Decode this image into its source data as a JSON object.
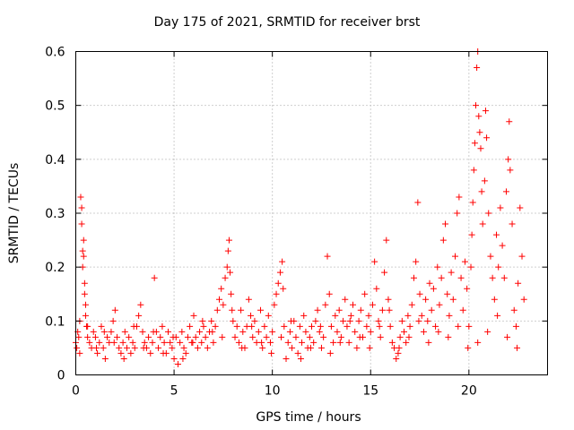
{
  "chart_data": {
    "type": "scatter",
    "title": "Day 175 of 2021, SRMTID for receiver brst",
    "xlabel": "GPS time / hours",
    "ylabel": "SRMTID / TECUs",
    "xlim": [
      0,
      24
    ],
    "ylim": [
      0,
      0.6
    ],
    "xticks": [
      0,
      5,
      10,
      15,
      20
    ],
    "xtick_labels": [
      "0",
      "5",
      "10",
      "15",
      "20"
    ],
    "yticks": [
      0,
      0.1,
      0.2,
      0.3,
      0.4,
      0.5,
      0.6
    ],
    "ytick_labels": [
      "0",
      "0.1",
      "0.2",
      "0.3",
      "0.4",
      "0.5",
      "0.6"
    ],
    "grid": true,
    "marker": "+",
    "series": [
      {
        "name": "SRMTID",
        "color": "#ff0000",
        "points": [
          [
            0.0,
            0.06
          ],
          [
            0.05,
            0.05
          ],
          [
            0.1,
            0.08
          ],
          [
            0.15,
            0.07
          ],
          [
            0.2,
            0.1
          ],
          [
            0.25,
            0.33
          ],
          [
            0.3,
            0.31
          ],
          [
            0.3,
            0.28
          ],
          [
            0.35,
            0.23
          ],
          [
            0.35,
            0.2
          ],
          [
            0.4,
            0.25
          ],
          [
            0.4,
            0.22
          ],
          [
            0.45,
            0.17
          ],
          [
            0.45,
            0.15
          ],
          [
            0.5,
            0.13
          ],
          [
            0.5,
            0.11
          ],
          [
            0.55,
            0.09
          ],
          [
            0.6,
            0.07
          ],
          [
            0.7,
            0.06
          ],
          [
            0.8,
            0.05
          ],
          [
            0.9,
            0.08
          ],
          [
            1.0,
            0.07
          ],
          [
            1.1,
            0.04
          ],
          [
            1.2,
            0.06
          ],
          [
            1.3,
            0.09
          ],
          [
            1.4,
            0.05
          ],
          [
            1.5,
            0.03
          ],
          [
            1.6,
            0.07
          ],
          [
            1.7,
            0.06
          ],
          [
            1.8,
            0.08
          ],
          [
            1.9,
            0.1
          ],
          [
            2.0,
            0.12
          ],
          [
            2.1,
            0.07
          ],
          [
            2.2,
            0.05
          ],
          [
            2.3,
            0.04
          ],
          [
            2.4,
            0.06
          ],
          [
            2.5,
            0.08
          ],
          [
            2.6,
            0.05
          ],
          [
            2.7,
            0.07
          ],
          [
            2.8,
            0.04
          ],
          [
            2.9,
            0.06
          ],
          [
            3.0,
            0.05
          ],
          [
            3.1,
            0.09
          ],
          [
            3.2,
            0.11
          ],
          [
            3.3,
            0.13
          ],
          [
            3.4,
            0.08
          ],
          [
            3.5,
            0.06
          ],
          [
            3.6,
            0.05
          ],
          [
            3.7,
            0.07
          ],
          [
            3.8,
            0.04
          ],
          [
            3.9,
            0.06
          ],
          [
            4.0,
            0.18
          ],
          [
            4.1,
            0.08
          ],
          [
            4.2,
            0.05
          ],
          [
            4.3,
            0.07
          ],
          [
            4.4,
            0.09
          ],
          [
            4.5,
            0.06
          ],
          [
            4.6,
            0.04
          ],
          [
            4.7,
            0.08
          ],
          [
            4.8,
            0.06
          ],
          [
            4.9,
            0.05
          ],
          [
            5.0,
            0.03
          ],
          [
            5.1,
            0.07
          ],
          [
            5.2,
            0.02
          ],
          [
            5.3,
            0.06
          ],
          [
            5.4,
            0.08
          ],
          [
            5.5,
            0.05
          ],
          [
            5.6,
            0.04
          ],
          [
            5.7,
            0.07
          ],
          [
            5.8,
            0.09
          ],
          [
            5.9,
            0.06
          ],
          [
            6.0,
            0.11
          ],
          [
            6.1,
            0.07
          ],
          [
            6.2,
            0.05
          ],
          [
            6.3,
            0.08
          ],
          [
            6.4,
            0.06
          ],
          [
            6.5,
            0.09
          ],
          [
            6.6,
            0.07
          ],
          [
            6.7,
            0.05
          ],
          [
            6.8,
            0.08
          ],
          [
            6.9,
            0.1
          ],
          [
            7.0,
            0.06
          ],
          [
            7.1,
            0.09
          ],
          [
            7.2,
            0.12
          ],
          [
            7.3,
            0.14
          ],
          [
            7.4,
            0.16
          ],
          [
            7.5,
            0.13
          ],
          [
            7.6,
            0.18
          ],
          [
            7.7,
            0.2
          ],
          [
            7.75,
            0.23
          ],
          [
            7.8,
            0.25
          ],
          [
            7.85,
            0.19
          ],
          [
            7.9,
            0.15
          ],
          [
            8.0,
            0.1
          ],
          [
            8.1,
            0.07
          ],
          [
            8.2,
            0.09
          ],
          [
            8.3,
            0.06
          ],
          [
            8.4,
            0.12
          ],
          [
            8.5,
            0.08
          ],
          [
            8.6,
            0.05
          ],
          [
            8.7,
            0.09
          ],
          [
            8.8,
            0.14
          ],
          [
            8.9,
            0.11
          ],
          [
            9.0,
            0.07
          ],
          [
            9.1,
            0.1
          ],
          [
            9.2,
            0.06
          ],
          [
            9.3,
            0.08
          ],
          [
            9.4,
            0.12
          ],
          [
            9.5,
            0.05
          ],
          [
            9.6,
            0.09
          ],
          [
            9.7,
            0.07
          ],
          [
            9.8,
            0.11
          ],
          [
            9.9,
            0.06
          ],
          [
            10.0,
            0.08
          ],
          [
            10.1,
            0.13
          ],
          [
            10.2,
            0.15
          ],
          [
            10.3,
            0.17
          ],
          [
            10.4,
            0.19
          ],
          [
            10.5,
            0.21
          ],
          [
            10.55,
            0.16
          ],
          [
            10.6,
            0.09
          ],
          [
            10.7,
            0.03
          ],
          [
            10.8,
            0.06
          ],
          [
            10.9,
            0.08
          ],
          [
            11.0,
            0.05
          ],
          [
            11.1,
            0.1
          ],
          [
            11.2,
            0.07
          ],
          [
            11.3,
            0.04
          ],
          [
            11.4,
            0.09
          ],
          [
            11.5,
            0.06
          ],
          [
            11.6,
            0.11
          ],
          [
            11.7,
            0.08
          ],
          [
            11.8,
            0.05
          ],
          [
            11.9,
            0.07
          ],
          [
            12.0,
            0.09
          ],
          [
            12.1,
            0.06
          ],
          [
            12.2,
            0.1
          ],
          [
            12.3,
            0.12
          ],
          [
            12.4,
            0.08
          ],
          [
            12.5,
            0.05
          ],
          [
            12.6,
            0.07
          ],
          [
            12.7,
            0.13
          ],
          [
            12.8,
            0.22
          ],
          [
            12.9,
            0.15
          ],
          [
            13.0,
            0.09
          ],
          [
            13.1,
            0.06
          ],
          [
            13.2,
            0.11
          ],
          [
            13.3,
            0.08
          ],
          [
            13.4,
            0.12
          ],
          [
            13.5,
            0.07
          ],
          [
            13.6,
            0.1
          ],
          [
            13.7,
            0.14
          ],
          [
            13.8,
            0.09
          ],
          [
            13.9,
            0.06
          ],
          [
            14.0,
            0.11
          ],
          [
            14.1,
            0.13
          ],
          [
            14.2,
            0.08
          ],
          [
            14.3,
            0.05
          ],
          [
            14.4,
            0.1
          ],
          [
            14.5,
            0.12
          ],
          [
            14.6,
            0.07
          ],
          [
            14.7,
            0.15
          ],
          [
            14.8,
            0.09
          ],
          [
            14.9,
            0.11
          ],
          [
            15.0,
            0.08
          ],
          [
            15.1,
            0.13
          ],
          [
            15.2,
            0.21
          ],
          [
            15.3,
            0.16
          ],
          [
            15.4,
            0.1
          ],
          [
            15.5,
            0.07
          ],
          [
            15.6,
            0.12
          ],
          [
            15.7,
            0.19
          ],
          [
            15.8,
            0.25
          ],
          [
            15.9,
            0.14
          ],
          [
            16.0,
            0.09
          ],
          [
            16.1,
            0.06
          ],
          [
            16.2,
            0.05
          ],
          [
            16.3,
            0.03
          ],
          [
            16.4,
            0.04
          ],
          [
            16.5,
            0.07
          ],
          [
            16.6,
            0.1
          ],
          [
            16.7,
            0.08
          ],
          [
            16.8,
            0.06
          ],
          [
            16.9,
            0.11
          ],
          [
            17.0,
            0.09
          ],
          [
            17.1,
            0.13
          ],
          [
            17.2,
            0.18
          ],
          [
            17.3,
            0.21
          ],
          [
            17.4,
            0.32
          ],
          [
            17.5,
            0.15
          ],
          [
            17.6,
            0.11
          ],
          [
            17.7,
            0.08
          ],
          [
            17.8,
            0.14
          ],
          [
            17.9,
            0.1
          ],
          [
            18.0,
            0.17
          ],
          [
            18.1,
            0.12
          ],
          [
            18.2,
            0.16
          ],
          [
            18.3,
            0.09
          ],
          [
            18.4,
            0.2
          ],
          [
            18.5,
            0.13
          ],
          [
            18.6,
            0.18
          ],
          [
            18.7,
            0.25
          ],
          [
            18.8,
            0.28
          ],
          [
            18.9,
            0.15
          ],
          [
            19.0,
            0.11
          ],
          [
            19.1,
            0.19
          ],
          [
            19.2,
            0.14
          ],
          [
            19.3,
            0.22
          ],
          [
            19.4,
            0.3
          ],
          [
            19.5,
            0.33
          ],
          [
            19.6,
            0.18
          ],
          [
            19.7,
            0.12
          ],
          [
            19.8,
            0.21
          ],
          [
            19.9,
            0.16
          ],
          [
            20.0,
            0.09
          ],
          [
            20.1,
            0.2
          ],
          [
            20.15,
            0.26
          ],
          [
            20.2,
            0.32
          ],
          [
            20.25,
            0.38
          ],
          [
            20.3,
            0.43
          ],
          [
            20.35,
            0.5
          ],
          [
            20.4,
            0.57
          ],
          [
            20.45,
            0.6
          ],
          [
            20.5,
            0.48
          ],
          [
            20.55,
            0.45
          ],
          [
            20.6,
            0.42
          ],
          [
            20.65,
            0.34
          ],
          [
            20.7,
            0.28
          ],
          [
            20.8,
            0.36
          ],
          [
            20.85,
            0.49
          ],
          [
            20.9,
            0.44
          ],
          [
            21.0,
            0.3
          ],
          [
            21.1,
            0.22
          ],
          [
            21.2,
            0.18
          ],
          [
            21.3,
            0.14
          ],
          [
            21.4,
            0.26
          ],
          [
            21.5,
            0.2
          ],
          [
            21.6,
            0.31
          ],
          [
            21.7,
            0.24
          ],
          [
            21.8,
            0.18
          ],
          [
            21.9,
            0.34
          ],
          [
            22.0,
            0.4
          ],
          [
            22.05,
            0.47
          ],
          [
            22.1,
            0.38
          ],
          [
            22.2,
            0.28
          ],
          [
            22.3,
            0.12
          ],
          [
            22.4,
            0.09
          ],
          [
            22.5,
            0.17
          ],
          [
            22.6,
            0.31
          ],
          [
            22.7,
            0.22
          ],
          [
            22.8,
            0.14
          ],
          [
            0.2,
            0.04
          ],
          [
            0.6,
            0.09
          ],
          [
            1.05,
            0.05
          ],
          [
            1.45,
            0.08
          ],
          [
            1.95,
            0.06
          ],
          [
            2.45,
            0.03
          ],
          [
            2.95,
            0.09
          ],
          [
            3.45,
            0.05
          ],
          [
            3.95,
            0.08
          ],
          [
            4.45,
            0.04
          ],
          [
            4.95,
            0.07
          ],
          [
            5.45,
            0.03
          ],
          [
            5.95,
            0.06
          ],
          [
            6.45,
            0.1
          ],
          [
            6.95,
            0.08
          ],
          [
            7.45,
            0.07
          ],
          [
            7.95,
            0.12
          ],
          [
            8.45,
            0.05
          ],
          [
            8.95,
            0.09
          ],
          [
            9.45,
            0.06
          ],
          [
            9.95,
            0.04
          ],
          [
            10.45,
            0.07
          ],
          [
            10.95,
            0.1
          ],
          [
            11.45,
            0.03
          ],
          [
            11.95,
            0.05
          ],
          [
            12.45,
            0.09
          ],
          [
            12.95,
            0.04
          ],
          [
            13.45,
            0.06
          ],
          [
            13.95,
            0.1
          ],
          [
            14.45,
            0.07
          ],
          [
            14.95,
            0.05
          ],
          [
            15.45,
            0.09
          ],
          [
            15.95,
            0.12
          ],
          [
            16.45,
            0.05
          ],
          [
            16.95,
            0.07
          ],
          [
            17.45,
            0.1
          ],
          [
            17.95,
            0.06
          ],
          [
            18.45,
            0.08
          ],
          [
            18.95,
            0.07
          ],
          [
            19.45,
            0.09
          ],
          [
            19.95,
            0.05
          ],
          [
            20.45,
            0.06
          ],
          [
            20.95,
            0.08
          ],
          [
            21.45,
            0.11
          ],
          [
            21.95,
            0.07
          ],
          [
            22.45,
            0.05
          ]
        ]
      }
    ]
  }
}
